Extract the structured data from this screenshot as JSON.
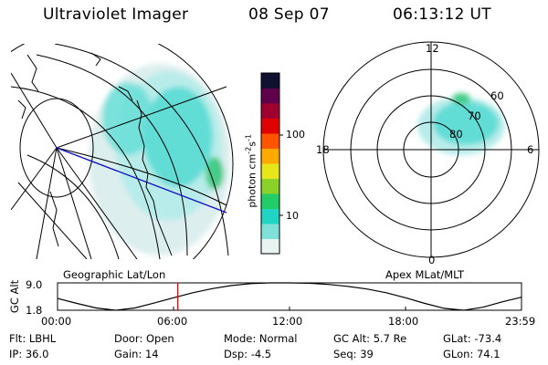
{
  "header": {
    "instrument": "Ultraviolet Imager",
    "date": "08 Sep 07",
    "time": "06:13:12 UT"
  },
  "geo_panel": {
    "caption": "Geographic Lat/Lon"
  },
  "colorbar": {
    "unit": "photon cm",
    "sup1": "-2",
    "mid": "s",
    "sup2": "-1",
    "ticks": [
      "100",
      "10"
    ],
    "colors": [
      "#e8f4f2",
      "#7fe0d8",
      "#22d4c4",
      "#22cc66",
      "#8ad22a",
      "#e6e61a",
      "#ffaa00",
      "#ff5500",
      "#e00000",
      "#a00030",
      "#60004a",
      "#101030"
    ]
  },
  "polar_panel": {
    "caption": "Apex MLat/MLT",
    "mlt_labels": {
      "top": "12",
      "left": "18",
      "right": "6",
      "bottom": "0"
    },
    "lat_labels": [
      "60",
      "70",
      "80"
    ]
  },
  "timeline": {
    "axis_label": "GC Alt",
    "y_ticks": [
      "9.0",
      "1.8"
    ],
    "x_ticks": [
      "00:00",
      "06:00",
      "12:00",
      "18:00",
      "23:59"
    ],
    "current_hour": 6.22,
    "curve_values": [
      [
        0,
        4.9
      ],
      [
        1,
        3.6
      ],
      [
        2,
        2.4
      ],
      [
        3,
        1.8
      ],
      [
        4,
        2.4
      ],
      [
        5,
        3.7
      ],
      [
        6,
        5.1
      ],
      [
        7,
        6.4
      ],
      [
        8,
        7.5
      ],
      [
        9,
        8.3
      ],
      [
        10,
        8.8
      ],
      [
        11,
        9.0
      ],
      [
        12,
        9.0
      ],
      [
        13,
        8.9
      ],
      [
        14,
        8.6
      ],
      [
        15,
        8.1
      ],
      [
        16,
        7.4
      ],
      [
        17,
        6.4
      ],
      [
        18,
        5.1
      ],
      [
        19,
        3.6
      ],
      [
        20,
        2.3
      ],
      [
        21,
        1.8
      ],
      [
        22,
        2.6
      ],
      [
        23,
        4.0
      ],
      [
        23.98,
        5.2
      ]
    ]
  },
  "status": {
    "row1": [
      {
        "label": "Flt:",
        "value": "LBHL"
      },
      {
        "label": "Door:",
        "value": "Open"
      },
      {
        "label": "Mode:",
        "value": "Normal"
      },
      {
        "label": "GC Alt:",
        "value": "5.7 Re"
      },
      {
        "label": "GLat:",
        "value": "-73.4"
      }
    ],
    "row2": [
      {
        "label": "IP:",
        "value": "36.0"
      },
      {
        "label": "Gain:",
        "value": "14"
      },
      {
        "label": "Dsp:",
        "value": "-4.5"
      },
      {
        "label": "Seq:",
        "value": "39"
      },
      {
        "label": "GLon:",
        "value": "74.1"
      }
    ]
  }
}
